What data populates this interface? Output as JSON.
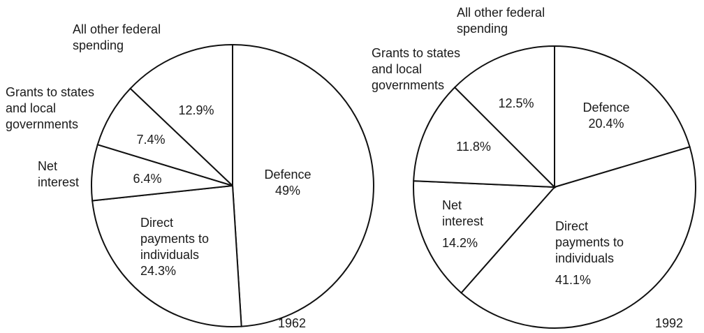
{
  "chart_data": [
    {
      "type": "pie",
      "year": "1962",
      "series": [
        {
          "name": "Defence",
          "value": 49,
          "label": "49%"
        },
        {
          "name": "Direct payments to individuals",
          "value": 24.3,
          "label": "24.3%"
        },
        {
          "name": "Net interest",
          "value": 6.4,
          "label": "6.4%"
        },
        {
          "name": "Grants to states and local governments",
          "value": 7.4,
          "label": "7.4%"
        },
        {
          "name": "All other federal spending",
          "value": 12.9,
          "label": "12.9%"
        }
      ]
    },
    {
      "type": "pie",
      "year": "1992",
      "series": [
        {
          "name": "Defence",
          "value": 20.4,
          "label": "20.4%"
        },
        {
          "name": "Direct payments to individuals",
          "value": 41.1,
          "label": "41.1%"
        },
        {
          "name": "Net interest",
          "value": 14.2,
          "label": "14.2%"
        },
        {
          "name": "Grants to states and local governments",
          "value": 11.8,
          "label": "11.8%"
        },
        {
          "name": "All other federal spending",
          "value": 12.5,
          "label": "12.5%"
        }
      ]
    }
  ]
}
